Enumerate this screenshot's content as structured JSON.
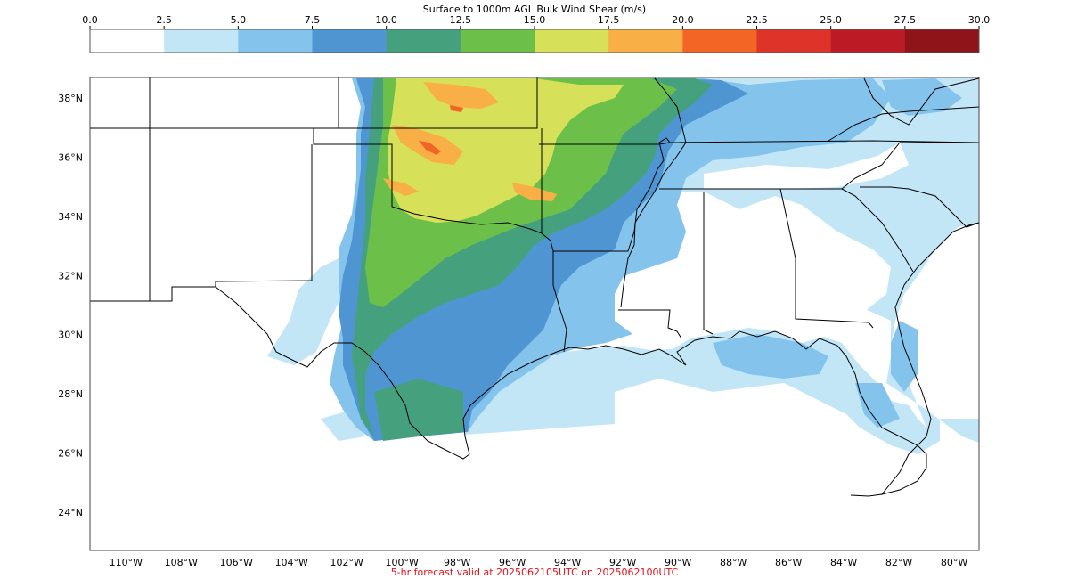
{
  "title": "Surface to 1000m AGL Bulk Wind Shear (m/s)",
  "footer": "5-hr forecast valid at 2025062105UTC on 2025062100UTC",
  "colorbar": {
    "ticks": [
      "0.0",
      "2.5",
      "5.0",
      "7.5",
      "10.0",
      "12.5",
      "15.0",
      "17.5",
      "20.0",
      "22.5",
      "25.0",
      "27.5",
      "30.0"
    ],
    "colors": [
      "#ffffff",
      "#c3e6f7",
      "#84c4ec",
      "#4f95d2",
      "#45a07e",
      "#6cc04a",
      "#d6e058",
      "#f8b046",
      "#f26524",
      "#de3328",
      "#bc1b25",
      "#8f1419"
    ]
  },
  "map": {
    "extent": {
      "lon": [
        -111.3,
        -79.1
      ],
      "lat": [
        22.7,
        38.7
      ]
    },
    "lat_labels": [
      "24°N",
      "26°N",
      "28°N",
      "30°N",
      "32°N",
      "34°N",
      "36°N",
      "38°N"
    ],
    "lon_labels": [
      "110°W",
      "108°W",
      "106°W",
      "104°W",
      "102°W",
      "100°W",
      "98°W",
      "96°W",
      "94°W",
      "92°W",
      "90°W",
      "88°W",
      "86°W",
      "84°W",
      "82°W",
      "80°W"
    ]
  }
}
